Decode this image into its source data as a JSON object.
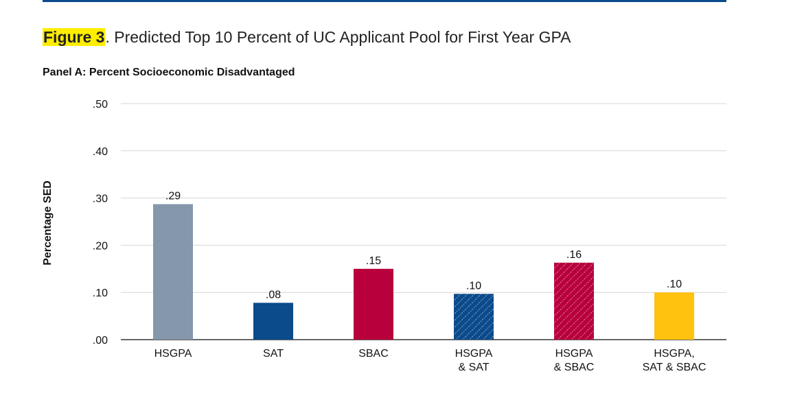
{
  "figure": {
    "label": "Figure 3",
    "title": ". Predicted Top 10 Percent of UC Applicant Pool for First Year GPA",
    "panel": "Panel A: Percent Socioeconomic Disadvantaged"
  },
  "chart_data": {
    "type": "bar",
    "ylabel": "Percentage SED",
    "xlabel": "",
    "ylim": [
      0,
      0.5
    ],
    "yticks": [
      0,
      0.1,
      0.2,
      0.3,
      0.4,
      0.5
    ],
    "ytick_labels": [
      ".00",
      ".10",
      ".20",
      ".30",
      ".40",
      ".50"
    ],
    "grid": true,
    "categories": [
      [
        "HSGPA"
      ],
      [
        "SAT"
      ],
      [
        "SBAC"
      ],
      [
        "HSGPA",
        "& SAT"
      ],
      [
        "HSGPA",
        "& SBAC"
      ],
      [
        "HSGPA,",
        "SAT & SBAC"
      ]
    ],
    "values": [
      0.287,
      0.078,
      0.15,
      0.097,
      0.163,
      0.1
    ],
    "data_labels": [
      ".29",
      ".08",
      ".15",
      ".10",
      ".16",
      ".10"
    ],
    "colors": [
      "#8497ab",
      "#0b4a8b",
      "#b8003c",
      "#0b4a8b",
      "#b8003c",
      "#ffc20e"
    ],
    "hatched": [
      false,
      false,
      false,
      true,
      true,
      false
    ]
  }
}
